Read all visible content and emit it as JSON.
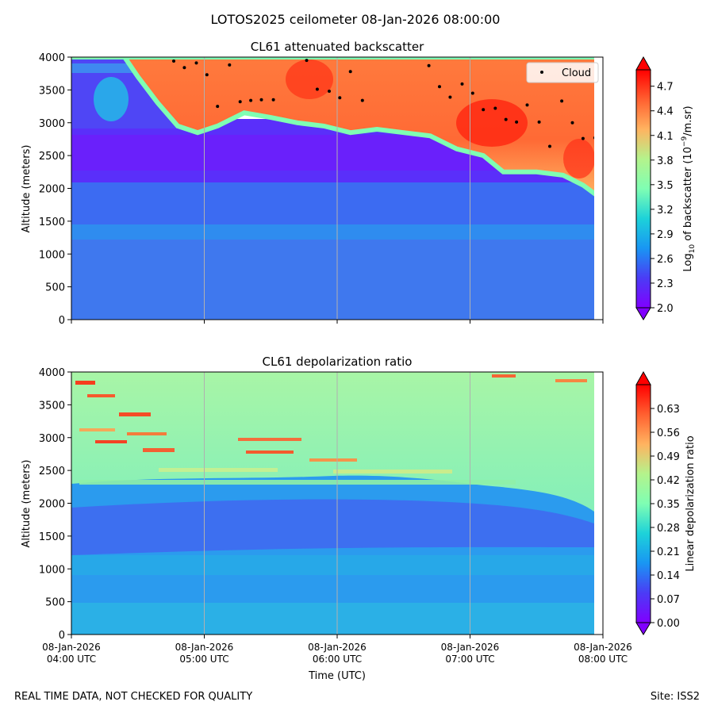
{
  "figure": {
    "suptitle": "LOTOS2025 ceilometer 08-Jan-2026 08:00:00",
    "footer_left": "REAL TIME DATA, NOT CHECKED FOR QUALITY",
    "footer_right": "Site: ISS2"
  },
  "chart_data": [
    {
      "type": "heatmap",
      "title": "CL61 attenuated backscatter",
      "xlabel": "",
      "ylabel": "Altitude (meters)",
      "ylim": [
        0,
        4000
      ],
      "yticks": [
        0,
        500,
        1000,
        1500,
        2000,
        2500,
        3000,
        3500,
        4000
      ],
      "xlim_hours": [
        4.0,
        8.0
      ],
      "x_ticks": [
        "08-Jan-2026 04:00 UTC",
        "08-Jan-2026 05:00 UTC",
        "08-Jan-2026 06:00 UTC",
        "08-Jan-2026 07:00 UTC",
        "08-Jan-2026 08:00 UTC"
      ],
      "grid": "vertical lines at 05:00, 06:00, 07:00",
      "colormap": "rainbow",
      "colorbar": {
        "label_main": "Log",
        "label_sub": "10",
        "label_rest": " of backscatter (10",
        "label_sup": "−9",
        "label_end": "/m.sr)",
        "range": [
          2.0,
          4.9
        ],
        "ticks": [
          "2.0",
          "2.3",
          "2.6",
          "2.9",
          "3.2",
          "3.5",
          "3.8",
          "4.1",
          "4.4",
          "4.7"
        ]
      },
      "legend": {
        "label": "Cloud",
        "placement": "top-right"
      },
      "cloud_base_points": [
        {
          "t": 4.77,
          "alt": 3940
        },
        {
          "t": 4.85,
          "alt": 3840
        },
        {
          "t": 4.94,
          "alt": 3910
        },
        {
          "t": 5.02,
          "alt": 3730
        },
        {
          "t": 5.1,
          "alt": 3250
        },
        {
          "t": 5.19,
          "alt": 3880
        },
        {
          "t": 5.27,
          "alt": 3320
        },
        {
          "t": 5.35,
          "alt": 3340
        },
        {
          "t": 5.43,
          "alt": 3350
        },
        {
          "t": 5.52,
          "alt": 3350
        },
        {
          "t": 5.77,
          "alt": 3950
        },
        {
          "t": 5.85,
          "alt": 3510
        },
        {
          "t": 5.94,
          "alt": 3480
        },
        {
          "t": 6.02,
          "alt": 3380
        },
        {
          "t": 6.1,
          "alt": 3780
        },
        {
          "t": 6.19,
          "alt": 3340
        },
        {
          "t": 6.69,
          "alt": 3870
        },
        {
          "t": 6.77,
          "alt": 3550
        },
        {
          "t": 6.85,
          "alt": 3390
        },
        {
          "t": 6.94,
          "alt": 3590
        },
        {
          "t": 7.02,
          "alt": 3450
        },
        {
          "t": 7.1,
          "alt": 3200
        },
        {
          "t": 7.19,
          "alt": 3220
        },
        {
          "t": 7.27,
          "alt": 3050
        },
        {
          "t": 7.35,
          "alt": 3010
        },
        {
          "t": 7.43,
          "alt": 3270
        },
        {
          "t": 7.52,
          "alt": 3010
        },
        {
          "t": 7.6,
          "alt": 2640
        },
        {
          "t": 7.69,
          "alt": 3330
        },
        {
          "t": 7.77,
          "alt": 3000
        },
        {
          "t": 7.85,
          "alt": 2760
        },
        {
          "t": 7.94,
          "alt": 2770
        }
      ],
      "cloud_top_boundary": [
        {
          "t": 4.0,
          "alt": 4000
        },
        {
          "t": 4.4,
          "alt": 4000
        },
        {
          "t": 4.5,
          "alt": 3700
        },
        {
          "t": 4.65,
          "alt": 3300
        },
        {
          "t": 4.8,
          "alt": 2950
        },
        {
          "t": 4.95,
          "alt": 2850
        },
        {
          "t": 5.1,
          "alt": 2950
        },
        {
          "t": 5.3,
          "alt": 3150
        },
        {
          "t": 5.5,
          "alt": 3080
        },
        {
          "t": 5.7,
          "alt": 3000
        },
        {
          "t": 5.9,
          "alt": 2950
        },
        {
          "t": 6.1,
          "alt": 2850
        },
        {
          "t": 6.3,
          "alt": 2900
        },
        {
          "t": 6.5,
          "alt": 2850
        },
        {
          "t": 6.7,
          "alt": 2800
        },
        {
          "t": 6.9,
          "alt": 2600
        },
        {
          "t": 7.1,
          "alt": 2500
        },
        {
          "t": 7.25,
          "alt": 2250
        },
        {
          "t": 7.5,
          "alt": 2250
        },
        {
          "t": 7.7,
          "alt": 2200
        },
        {
          "t": 7.85,
          "alt": 2050
        },
        {
          "t": 7.95,
          "alt": 1900
        }
      ]
    },
    {
      "type": "heatmap",
      "title": "CL61 depolarization ratio",
      "xlabel": "Time (UTC)",
      "ylabel": "Altitude (meters)",
      "ylim": [
        0,
        4000
      ],
      "yticks": [
        0,
        500,
        1000,
        1500,
        2000,
        2500,
        3000,
        3500,
        4000
      ],
      "xlim_hours": [
        4.0,
        8.0
      ],
      "x_ticks": [
        "08-Jan-2026 04:00 UTC",
        "08-Jan-2026 05:00 UTC",
        "08-Jan-2026 06:00 UTC",
        "08-Jan-2026 07:00 UTC",
        "08-Jan-2026 08:00 UTC"
      ],
      "grid": "vertical lines at 05:00, 06:00, 07:00",
      "colormap": "rainbow",
      "colorbar": {
        "label": "Linear depolarization ratio",
        "range": [
          0.0,
          0.7
        ],
        "ticks": [
          "0.00",
          "0.07",
          "0.14",
          "0.21",
          "0.28",
          "0.35",
          "0.42",
          "0.49",
          "0.56",
          "0.63"
        ]
      }
    }
  ]
}
